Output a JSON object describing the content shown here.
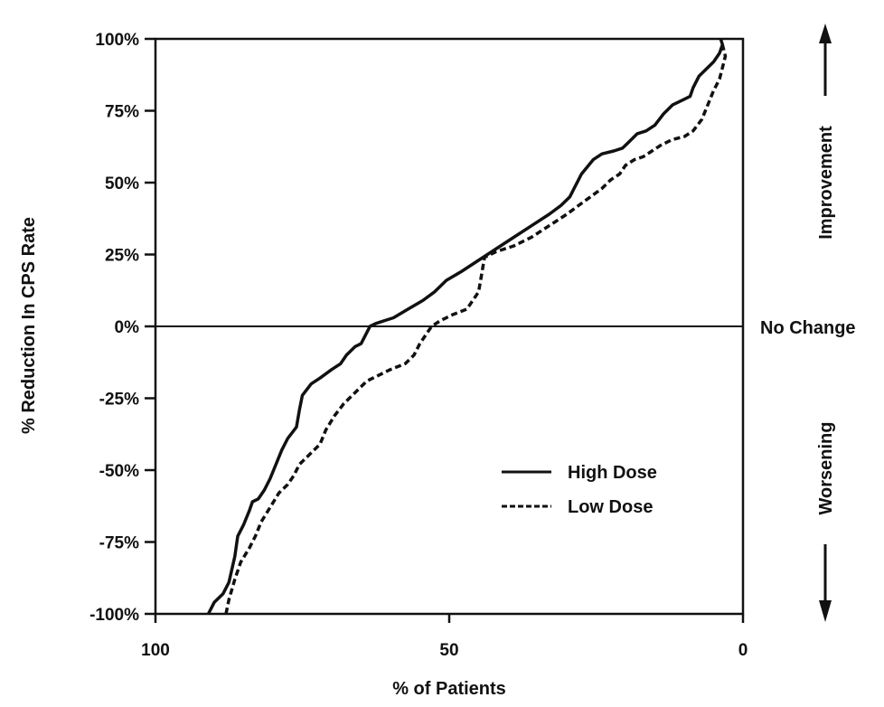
{
  "chart_data": {
    "type": "line",
    "xlabel": "% of Patients",
    "ylabel": "% Reduction In CPS Rate",
    "xlim": [
      100,
      0
    ],
    "ylim": [
      -100,
      100
    ],
    "x_ticks": [
      {
        "value": 100,
        "label": "100"
      },
      {
        "value": 50,
        "label": "50"
      },
      {
        "value": 0,
        "label": "0"
      }
    ],
    "y_ticks": [
      {
        "value": 100,
        "label": "100%"
      },
      {
        "value": 75,
        "label": "75%"
      },
      {
        "value": 50,
        "label": "50%"
      },
      {
        "value": 25,
        "label": "25%"
      },
      {
        "value": 0,
        "label": "0%"
      },
      {
        "value": -25,
        "label": "-25%"
      },
      {
        "value": -50,
        "label": "-50%"
      },
      {
        "value": -75,
        "label": "-75%"
      },
      {
        "value": -100,
        "label": "-100%"
      }
    ],
    "reference_line": {
      "y": 0,
      "label": "No Change"
    },
    "annotations": {
      "improvement": "Improvement",
      "worsening": "Worsening"
    },
    "legend": {
      "position": "lower-right"
    },
    "series": [
      {
        "name": "High Dose",
        "style": "solid",
        "color": "#111111",
        "points": [
          [
            91,
            -100
          ],
          [
            90,
            -96
          ],
          [
            88.5,
            -93
          ],
          [
            87.5,
            -89
          ],
          [
            86.5,
            -80
          ],
          [
            86,
            -73
          ],
          [
            85,
            -69
          ],
          [
            84,
            -64
          ],
          [
            83.5,
            -61
          ],
          [
            82.5,
            -60
          ],
          [
            81.5,
            -57
          ],
          [
            80.5,
            -53
          ],
          [
            79.5,
            -48
          ],
          [
            78.5,
            -43
          ],
          [
            77.5,
            -39
          ],
          [
            76,
            -35
          ],
          [
            75.5,
            -29
          ],
          [
            75,
            -24
          ],
          [
            73.5,
            -20
          ],
          [
            72,
            -18
          ],
          [
            70,
            -15
          ],
          [
            68.5,
            -13
          ],
          [
            67.5,
            -10
          ],
          [
            66,
            -7
          ],
          [
            65,
            -6
          ],
          [
            64.5,
            -4
          ],
          [
            63.5,
            0
          ],
          [
            62.5,
            1
          ],
          [
            61,
            2
          ],
          [
            59.5,
            3
          ],
          [
            57,
            6
          ],
          [
            54.5,
            9
          ],
          [
            52.5,
            12
          ],
          [
            50.5,
            16
          ],
          [
            48,
            19
          ],
          [
            45,
            23
          ],
          [
            42,
            27
          ],
          [
            39,
            31
          ],
          [
            36,
            35
          ],
          [
            33,
            39
          ],
          [
            31,
            42
          ],
          [
            29.5,
            45
          ],
          [
            28.5,
            49
          ],
          [
            27.5,
            53
          ],
          [
            25.5,
            58
          ],
          [
            24,
            60
          ],
          [
            22,
            61
          ],
          [
            20.5,
            62
          ],
          [
            19.5,
            64
          ],
          [
            18,
            67
          ],
          [
            16.5,
            68
          ],
          [
            15,
            70
          ],
          [
            13.5,
            74
          ],
          [
            12,
            77
          ],
          [
            10,
            79
          ],
          [
            9,
            80
          ],
          [
            8.5,
            83
          ],
          [
            7.5,
            87
          ],
          [
            6,
            90
          ],
          [
            5,
            92
          ],
          [
            4,
            95
          ],
          [
            3.5,
            98
          ],
          [
            3.8,
            100
          ]
        ]
      },
      {
        "name": "Low Dose",
        "style": "dashed",
        "color": "#111111",
        "points": [
          [
            88,
            -100
          ],
          [
            87.5,
            -95
          ],
          [
            86.5,
            -88
          ],
          [
            85.5,
            -82
          ],
          [
            84,
            -77
          ],
          [
            83,
            -73
          ],
          [
            82,
            -68
          ],
          [
            80.5,
            -63
          ],
          [
            79,
            -58
          ],
          [
            77.5,
            -55
          ],
          [
            76.5,
            -52
          ],
          [
            75.5,
            -48
          ],
          [
            74,
            -45
          ],
          [
            72,
            -41
          ],
          [
            71,
            -36
          ],
          [
            69.5,
            -31
          ],
          [
            68,
            -27
          ],
          [
            66,
            -23
          ],
          [
            64,
            -19
          ],
          [
            62,
            -17
          ],
          [
            60,
            -15
          ],
          [
            57.5,
            -13
          ],
          [
            56,
            -10
          ],
          [
            55,
            -6
          ],
          [
            54,
            -3
          ],
          [
            53,
            0
          ],
          [
            51.5,
            2
          ],
          [
            49.5,
            4
          ],
          [
            47,
            6
          ],
          [
            46,
            9
          ],
          [
            45,
            12
          ],
          [
            44.5,
            18
          ],
          [
            44,
            24
          ],
          [
            42,
            26
          ],
          [
            39,
            28
          ],
          [
            36,
            31
          ],
          [
            33,
            35
          ],
          [
            30,
            39
          ],
          [
            28,
            42
          ],
          [
            26,
            45
          ],
          [
            24,
            48
          ],
          [
            22.5,
            51
          ],
          [
            21,
            53
          ],
          [
            20,
            56
          ],
          [
            18.5,
            58
          ],
          [
            17,
            59
          ],
          [
            15.5,
            61
          ],
          [
            14,
            63
          ],
          [
            12,
            65
          ],
          [
            10,
            66
          ],
          [
            8.5,
            68
          ],
          [
            7,
            72
          ],
          [
            6,
            77
          ],
          [
            5,
            82
          ],
          [
            4,
            86
          ],
          [
            3.5,
            90
          ],
          [
            3,
            94
          ],
          [
            3.5,
            98
          ]
        ]
      }
    ]
  }
}
